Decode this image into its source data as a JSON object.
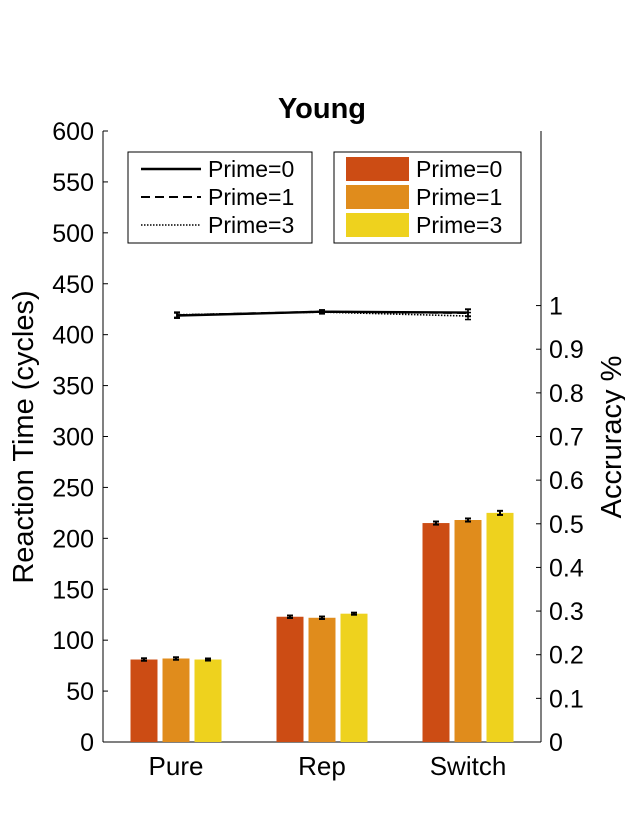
{
  "chart_data": {
    "type": "bar",
    "title": "Young",
    "categories": [
      "Pure",
      "Rep",
      "Switch"
    ],
    "ylabel": "Reaction Time (cycles)",
    "ylim": [
      0,
      600
    ],
    "yticks": [
      0,
      50,
      100,
      150,
      200,
      250,
      300,
      350,
      400,
      450,
      500,
      550,
      600
    ],
    "y2label": "Accruracy %",
    "y2lim": [
      0,
      1.4
    ],
    "y2ticks": [
      "0",
      "0.1",
      "0.2",
      "0.3",
      "0.4",
      "0.5",
      "0.6",
      "0.7",
      "0.8",
      "0.9",
      "1"
    ],
    "bar_series": [
      {
        "name": "Prime=0",
        "color": "#CC4C14",
        "values": [
          81,
          123,
          215
        ],
        "errors": [
          1.2,
          1.2,
          1.5
        ]
      },
      {
        "name": "Prime=1",
        "color": "#E08C1C",
        "values": [
          82,
          122,
          218
        ],
        "errors": [
          1.2,
          1.2,
          1.5
        ]
      },
      {
        "name": "Prime=3",
        "color": "#EED21E",
        "values": [
          81,
          126,
          225
        ],
        "errors": [
          1.0,
          1.0,
          2.0
        ]
      }
    ],
    "line_series": [
      {
        "name": "Prime=0",
        "style": "solid",
        "values": [
          0.977,
          0.986,
          0.984
        ],
        "errors": [
          0.006,
          0.004,
          0.008
        ]
      },
      {
        "name": "Prime=1",
        "style": "dashed",
        "values": [
          0.978,
          0.986,
          0.983
        ],
        "errors": [
          0.006,
          0.004,
          0.008
        ]
      },
      {
        "name": "Prime=3",
        "style": "dotted",
        "values": [
          0.979,
          0.985,
          0.976
        ],
        "errors": [
          0.006,
          0.004,
          0.008
        ]
      }
    ],
    "legends": [
      "top-left (lines)",
      "top-right (bars)"
    ],
    "grid": false
  }
}
